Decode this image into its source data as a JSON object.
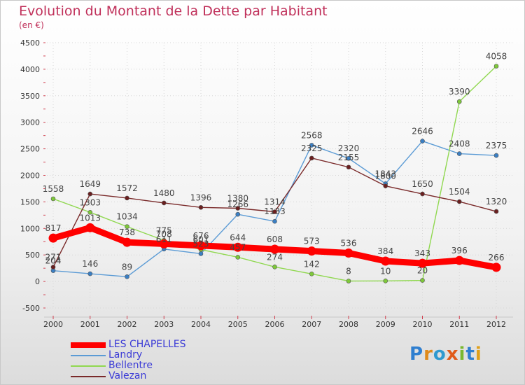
{
  "chart_data": {
    "type": "line",
    "title": "Evolution du Montant de la Dette par Habitant",
    "subtitle": "(en €)",
    "xlabel": "",
    "ylabel": "",
    "ylim": [
      -500,
      4500
    ],
    "yticks": [
      -500,
      0,
      500,
      1000,
      1500,
      2000,
      2500,
      3000,
      3500,
      4000,
      4500
    ],
    "categories": [
      "2000",
      "2001",
      "2002",
      "2003",
      "2004",
      "2005",
      "2006",
      "2007",
      "2008",
      "2009",
      "2010",
      "2011",
      "2012"
    ],
    "series": [
      {
        "name": "LES CHAPELLES",
        "color": "#ff0000",
        "values": [
          817,
          1013,
          738,
          708,
          676,
          644,
          608,
          573,
          536,
          384,
          343,
          396,
          266
        ]
      },
      {
        "name": "Landry",
        "color": "#5b9bd5",
        "values": [
          204,
          146,
          89,
          611,
          523,
          1266,
          1133,
          2568,
          2320,
          1843,
          2646,
          2408,
          2375
        ]
      },
      {
        "name": "Bellentre",
        "color": "#90d850",
        "values": [
          1558,
          1303,
          1034,
          775,
          601,
          457,
          274,
          142,
          8,
          10,
          20,
          3390,
          4058
        ]
      },
      {
        "name": "Valezan",
        "color": "#7a2a2a",
        "values": [
          271,
          1649,
          1572,
          1480,
          1396,
          1380,
          1314,
          2325,
          2155,
          1800,
          1650,
          1504,
          1320
        ]
      }
    ]
  },
  "logo": {
    "letters": [
      "P",
      "r",
      "o",
      "x",
      "i",
      "t",
      "i"
    ]
  }
}
